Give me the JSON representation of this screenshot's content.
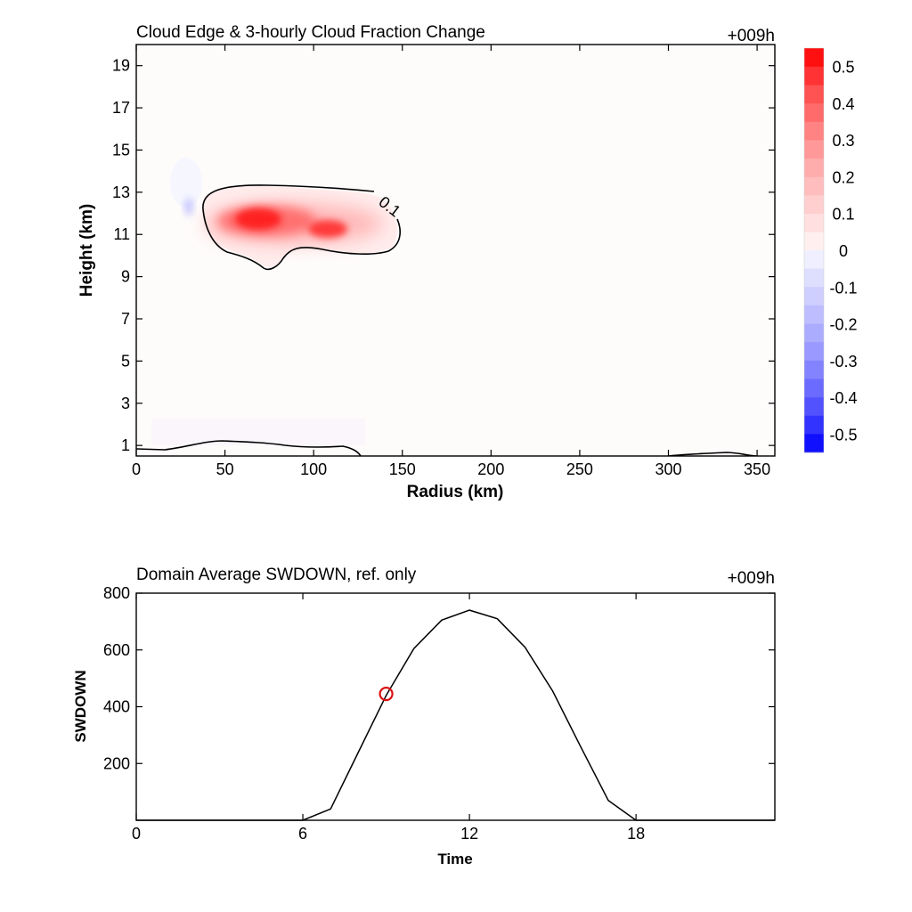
{
  "chart_data": [
    {
      "type": "heatmap",
      "title": "Cloud Edge & 3-hourly Cloud Fraction Change",
      "time_label": "+009h",
      "xlabel": "Radius (km)",
      "ylabel": "Height (km)",
      "xlim": [
        0,
        360
      ],
      "ylim": [
        0.5,
        20
      ],
      "x_ticks": [
        0,
        50,
        100,
        150,
        200,
        250,
        300,
        350
      ],
      "y_ticks": [
        1,
        3,
        5,
        7,
        9,
        11,
        13,
        15,
        17,
        19
      ],
      "contour_label": "0.1",
      "colorbar": {
        "range": [
          -0.55,
          0.55
        ],
        "levels": [
          0.5,
          0.4,
          0.3,
          0.2,
          0.1,
          0,
          -0.1,
          -0.2,
          -0.3,
          -0.4,
          -0.5
        ],
        "level_labels": [
          "0.5",
          "0.4",
          "0.3",
          "0.2",
          "0.1",
          "0",
          "-0.1",
          "-0.2",
          "-0.3",
          "-0.4",
          "-0.5"
        ],
        "colors_positive": [
          "#ffefef",
          "#ffdfdf",
          "#ffcece",
          "#ffbdbd",
          "#ffacac",
          "#ff9999",
          "#ff8383",
          "#ff6b6b",
          "#ff5252",
          "#ff3333",
          "#ff1010"
        ],
        "colors_negative": [
          "#efefff",
          "#dedeff",
          "#ceceff",
          "#bdbdff",
          "#acacff",
          "#9999ff",
          "#8383ff",
          "#6b6bff",
          "#5252ff",
          "#3333ff",
          "#1010ff"
        ]
      },
      "features": [
        {
          "name": "upper cloud increase",
          "x_range": [
            40,
            150
          ],
          "y_range": [
            10,
            12.7
          ],
          "peak_value": 0.55,
          "peak_at": [
            70,
            11.7
          ]
        },
        {
          "name": "secondary max",
          "peak_value": 0.45,
          "peak_at": [
            108,
            11.2
          ]
        },
        {
          "name": "weak decrease",
          "peak_value": -0.1,
          "peak_at": [
            30,
            12.4
          ]
        }
      ]
    },
    {
      "type": "line",
      "title": "Domain Average SWDOWN, ref. only",
      "time_label": "+009h",
      "xlabel": "Time",
      "ylabel": "SWDOWN",
      "xlim": [
        0,
        23
      ],
      "ylim": [
        0,
        800
      ],
      "x_ticks": [
        0,
        6,
        12,
        18
      ],
      "y_ticks": [
        200,
        400,
        600,
        800
      ],
      "x": [
        0,
        1,
        2,
        3,
        4,
        5,
        6,
        7,
        8,
        9,
        10,
        11,
        12,
        13,
        14,
        15,
        16,
        17,
        18,
        19,
        20,
        21,
        22,
        23
      ],
      "values": [
        0,
        0,
        0,
        0,
        0,
        0,
        0,
        40,
        240,
        440,
        605,
        705,
        740,
        710,
        610,
        455,
        260,
        70,
        0,
        0,
        0,
        0,
        0,
        0
      ],
      "marker": {
        "x": 9,
        "y": 445,
        "color": "#dd1111"
      }
    }
  ]
}
